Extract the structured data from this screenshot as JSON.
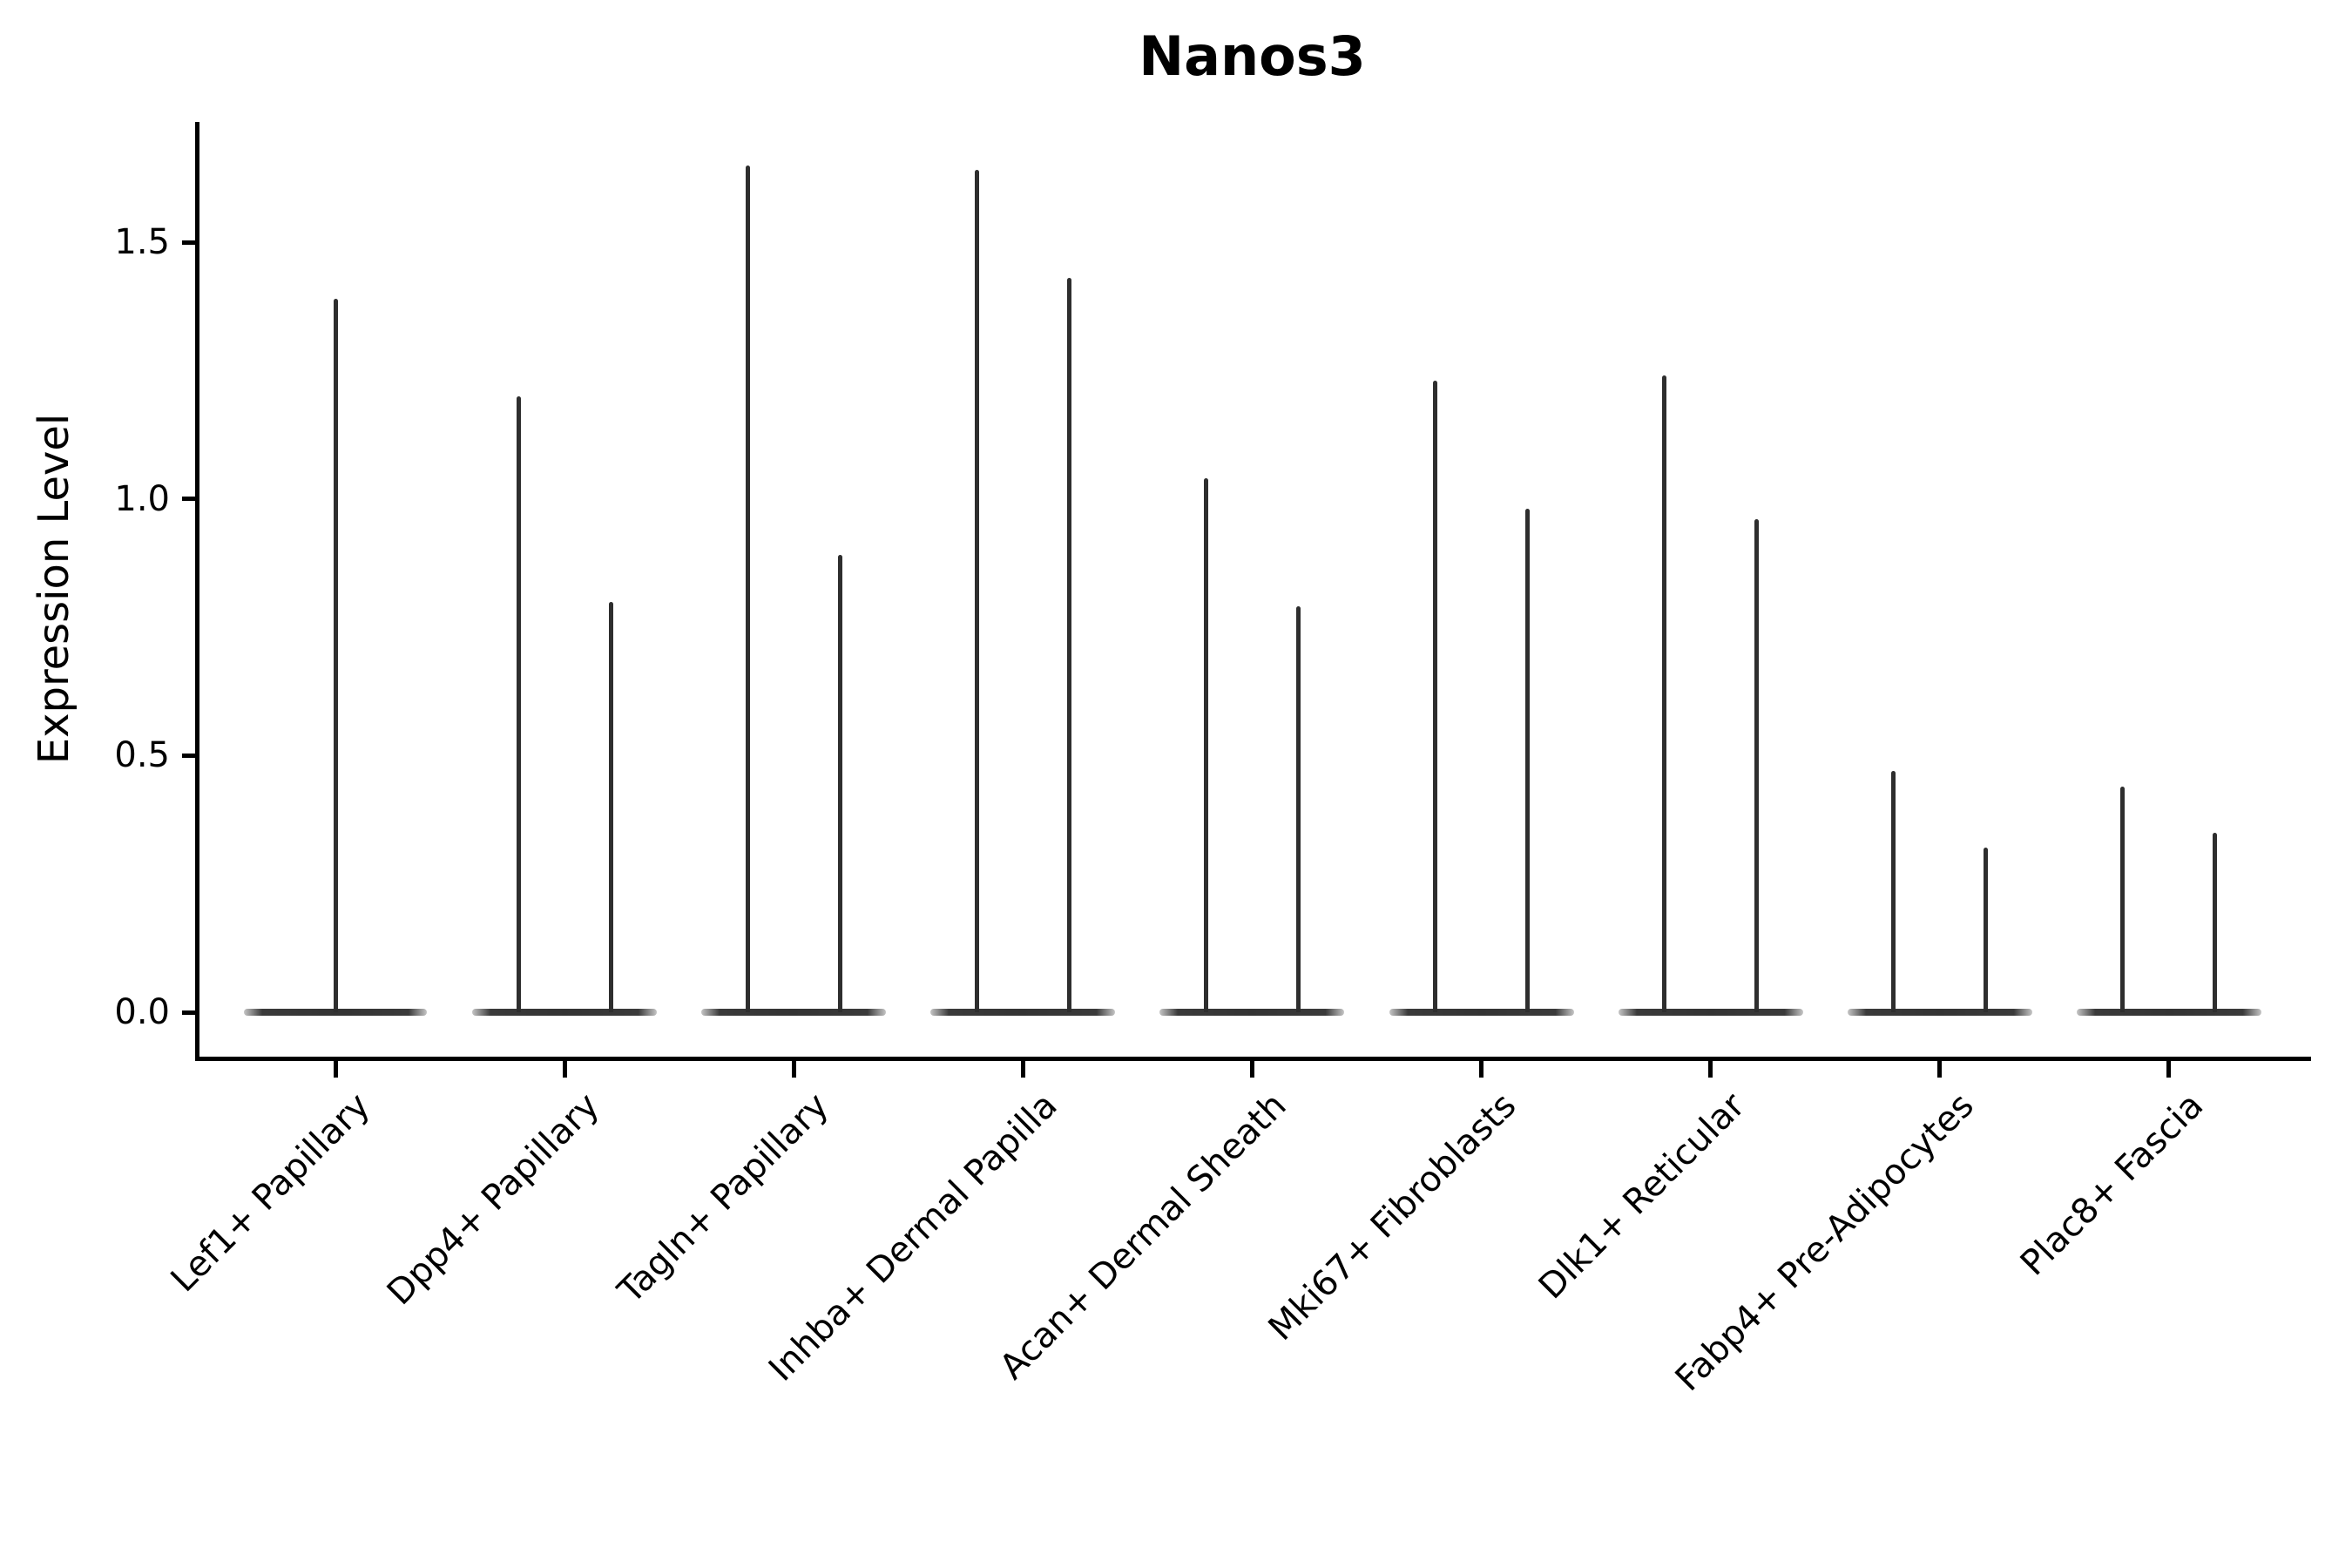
{
  "chart_data": {
    "type": "violin",
    "title": "Nanos3",
    "xlabel": "",
    "ylabel": "Expression Level",
    "ylim": [
      -0.09,
      1.73
    ],
    "yticks": [
      0.0,
      0.5,
      1.0,
      1.5
    ],
    "ytick_labels": [
      "0.0",
      "0.5",
      "1.0",
      "1.5"
    ],
    "grid": false,
    "legend": "none",
    "baseline_value": 0.0,
    "categories": [
      "Lef1+ Papillary",
      "Dpp4+ Papillary",
      "Tagln+ Papillary",
      "Inhba+ Dermal Papilla",
      "Acan+ Dermal Sheath",
      "Mki67+ Fibroblasts",
      "Dlk1+ Reticular",
      "Fabp4+ Pre-Adipocytes",
      "Plac8+ Fascia"
    ],
    "violins": [
      {
        "category": "Lef1+ Papillary",
        "maxima": [
          1.39
        ]
      },
      {
        "category": "Dpp4+ Papillary",
        "maxima": [
          1.2,
          0.8
        ]
      },
      {
        "category": "Tagln+ Papillary",
        "maxima": [
          1.65,
          0.89
        ]
      },
      {
        "category": "Inhba+ Dermal Papilla",
        "maxima": [
          1.64,
          1.43
        ]
      },
      {
        "category": "Acan+ Dermal Sheath",
        "maxima": [
          1.04,
          0.79
        ]
      },
      {
        "category": "Mki67+ Fibroblasts",
        "maxima": [
          1.23,
          0.98
        ]
      },
      {
        "category": "Dlk1+ Reticular",
        "maxima": [
          1.24,
          0.96
        ]
      },
      {
        "category": "Fabp4+ Pre-Adipocytes",
        "maxima": [
          0.47,
          0.32
        ]
      },
      {
        "category": "Plac8+ Fascia",
        "maxima": [
          0.44,
          0.35
        ]
      }
    ],
    "colors": {
      "violin_stroke": "#2e2e2e",
      "axis": "#000000",
      "background": "#ffffff",
      "title_text": "#000000"
    }
  }
}
